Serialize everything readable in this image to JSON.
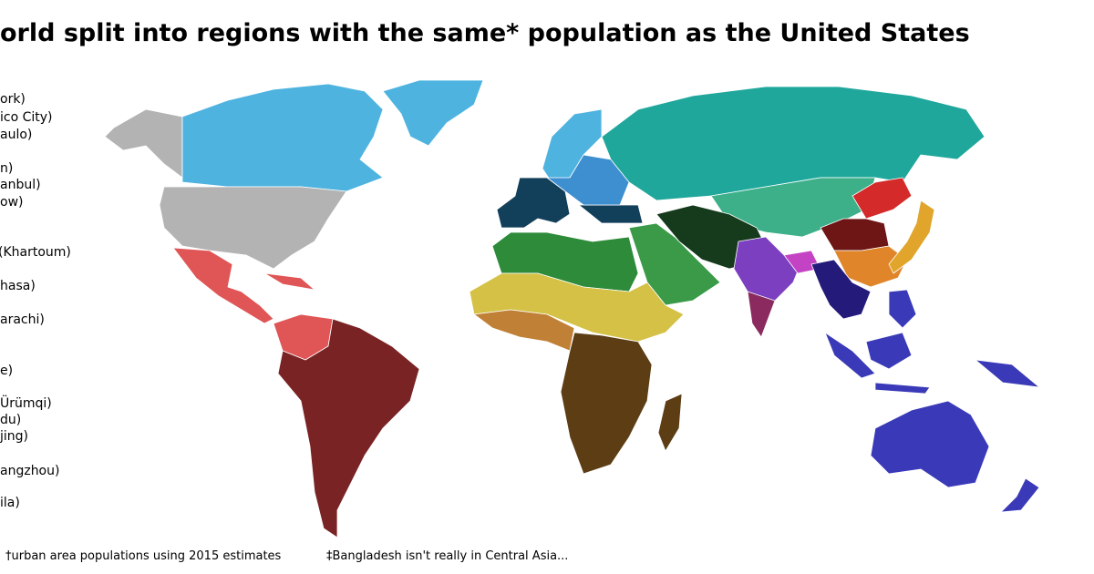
{
  "header": {
    "title": "orld split into regions with the same* population as the United States"
  },
  "legend": [
    "ork)",
    "ico City)",
    "aulo)",
    "n)",
    "anbul)",
    "ow)",
    "(Khartoum)",
    "hasa)",
    "arachi)",
    "e)",
    "Ürümqi)",
    "du)",
    "jing)",
    "angzhou)",
    "ila)"
  ],
  "footnotes": [
    "†urban area populations using 2015 estimates",
    "‡Bangladesh isn't really in Central Asia..."
  ]
}
